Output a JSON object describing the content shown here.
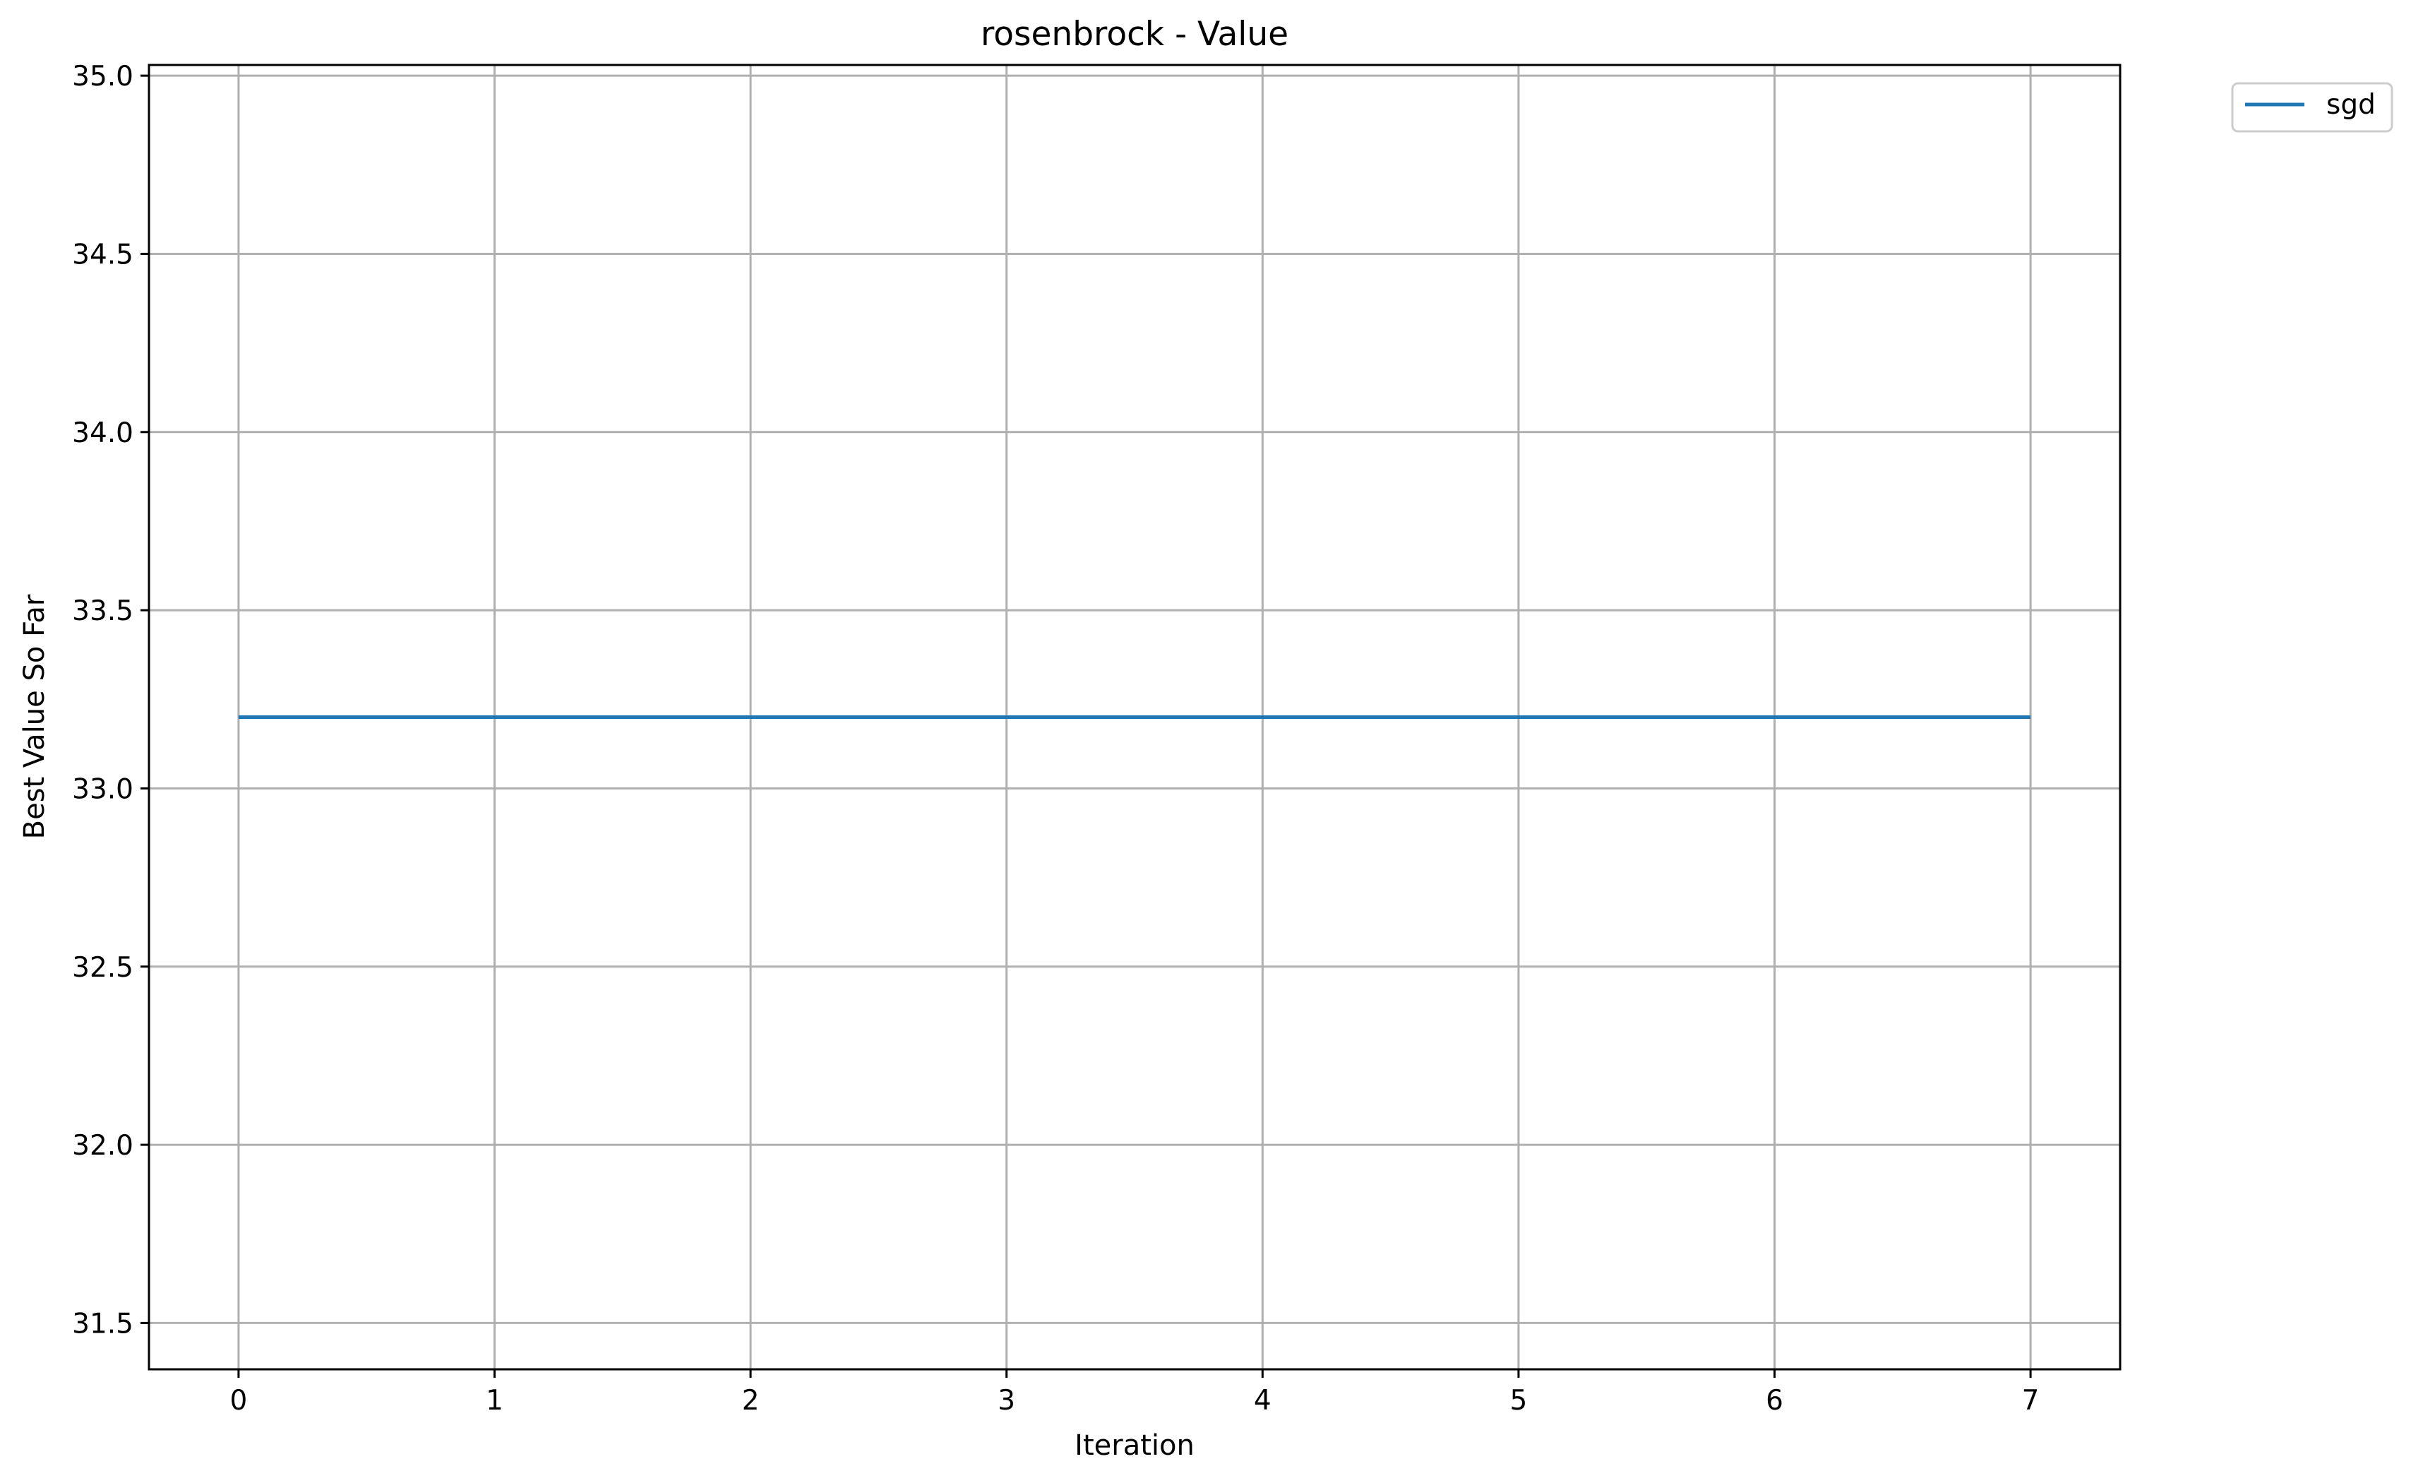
{
  "chart_data": {
    "type": "line",
    "title": "rosenbrock - Value",
    "xlabel": "Iteration",
    "ylabel": "Best Value So Far",
    "xlim": [
      -0.35,
      7.35
    ],
    "ylim": [
      31.37,
      35.03
    ],
    "xticks": [
      0,
      1,
      2,
      3,
      4,
      5,
      6,
      7
    ],
    "yticks": [
      31.5,
      32.0,
      32.5,
      33.0,
      33.5,
      34.0,
      34.5,
      35.0
    ],
    "ytick_labels": [
      "31.5",
      "32.0",
      "32.5",
      "33.0",
      "33.5",
      "34.0",
      "34.5",
      "35.0"
    ],
    "grid": true,
    "legend_position": "outside-top-right",
    "series": [
      {
        "name": "sgd",
        "color": "#1f77b4",
        "x": [
          0,
          1,
          2,
          3,
          4,
          5,
          6,
          7
        ],
        "y": [
          33.2,
          33.2,
          33.2,
          33.2,
          33.2,
          33.2,
          33.2,
          33.2
        ]
      }
    ]
  }
}
